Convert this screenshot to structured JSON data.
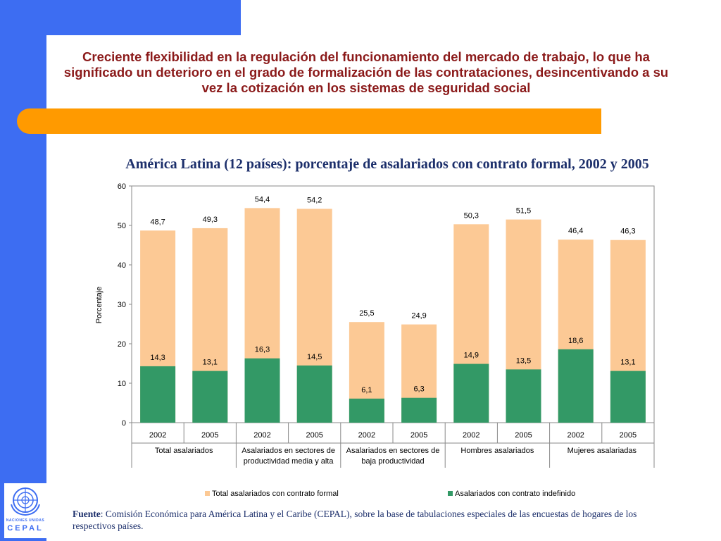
{
  "slide": {
    "headline": "Creciente flexibilidad en la regulación del funcionamiento del mercado de trabajo, lo que ha significado un deterioro en el grado de formalización de las contrataciones, desincentivando a su vez la cotización en los sistemas de seguridad social",
    "source_label": "Fuente",
    "source_text": ": Comisión Económica para América Latina y el Caribe (CEPAL), sobre la base de tabulaciones especiales de las encuestas de hogares de los respectivos países.",
    "logo_line1": "NACIONES UNIDAS",
    "logo_line2": "CEPAL"
  },
  "colors": {
    "blue": "#3d6df2",
    "orange": "#ff9a00",
    "formal": "#fcc995",
    "indefinido": "#339966"
  },
  "chart_data": {
    "type": "bar",
    "title": "América Latina (12 países): porcentaje de asalariados con contrato formal, 2002 y 2005",
    "ylabel": "Porcentaje",
    "xlabel": "",
    "ylim": [
      0,
      60
    ],
    "yticks": [
      "0",
      "10",
      "20",
      "30",
      "40",
      "50",
      "60"
    ],
    "categories": [
      "2002",
      "2005",
      "2002",
      "2005",
      "2002",
      "2005",
      "2002",
      "2005",
      "2002",
      "2005"
    ],
    "groups": [
      {
        "line1": "Total asalariados",
        "line2": ""
      },
      {
        "line1": "Asalariados en sectores de",
        "line2": "productividad media y alta"
      },
      {
        "line1": "Asalariados en sectores de",
        "line2": "baja productividad"
      },
      {
        "line1": "Hombres asalariados",
        "line2": ""
      },
      {
        "line1": "Mujeres asalariadas",
        "line2": ""
      }
    ],
    "series": [
      {
        "name": "Total asalariados con contrato formal",
        "values": [
          48.7,
          49.3,
          54.4,
          54.2,
          25.5,
          24.9,
          50.3,
          51.5,
          46.4,
          46.3
        ],
        "labels": [
          "48,7",
          "49,3",
          "54,4",
          "54,2",
          "25,5",
          "24,9",
          "50,3",
          "51,5",
          "46,4",
          "46,3"
        ]
      },
      {
        "name": "Asalariados con contrato indefinido",
        "values": [
          14.3,
          13.1,
          16.3,
          14.5,
          6.1,
          6.3,
          14.9,
          13.5,
          18.6,
          13.1
        ],
        "labels": [
          "14,3",
          "13,1",
          "16,3",
          "14,5",
          "6,1",
          "6,3",
          "14,9",
          "13,5",
          "18,6",
          "13,1"
        ]
      }
    ],
    "legend_position": "bottom"
  }
}
